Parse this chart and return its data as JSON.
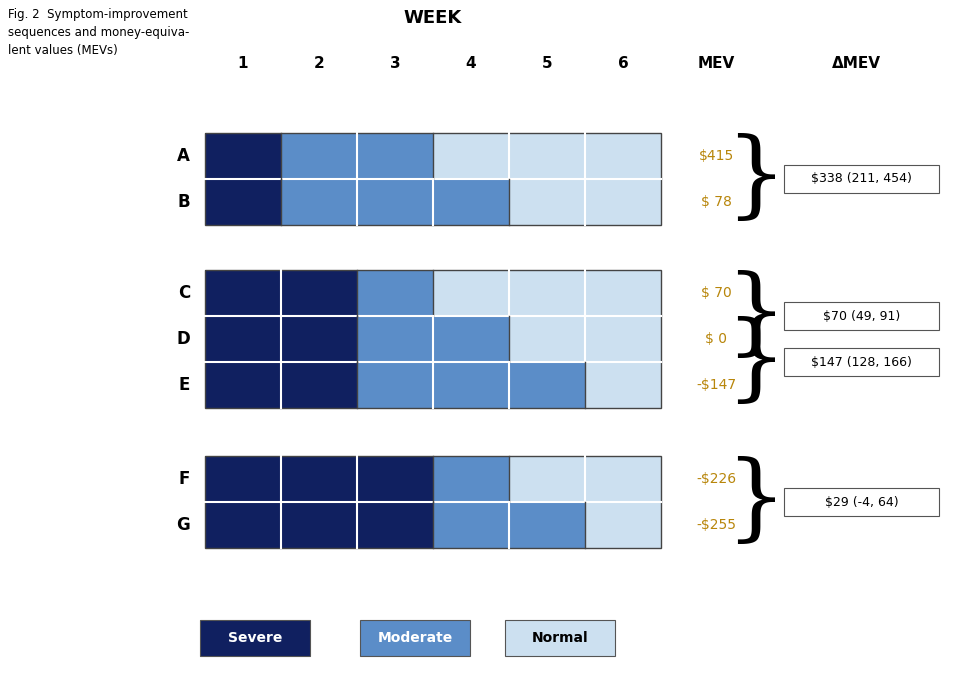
{
  "title": "WEEK",
  "fig_label": "Fig. 2  Symptom-improvement\nsequences and money-equiva-\nlent values (MEVs)",
  "week_labels": [
    "1",
    "2",
    "3",
    "4",
    "5",
    "6"
  ],
  "col_header_mev": "MEV",
  "col_header_dmev": "ΔMEV",
  "colors": {
    "severe": "#102060",
    "moderate": "#5b8dc8",
    "normal": "#cce0f0",
    "border_dark": "#444444",
    "border_light": "#888888"
  },
  "sequences": {
    "A": [
      "severe",
      "moderate",
      "moderate",
      "normal",
      "normal",
      "normal"
    ],
    "B": [
      "severe",
      "moderate",
      "moderate",
      "moderate",
      "normal",
      "normal"
    ],
    "C": [
      "severe",
      "severe",
      "moderate",
      "normal",
      "normal",
      "normal"
    ],
    "D": [
      "severe",
      "severe",
      "moderate",
      "moderate",
      "normal",
      "normal"
    ],
    "E": [
      "severe",
      "severe",
      "moderate",
      "moderate",
      "moderate",
      "normal"
    ],
    "F": [
      "severe",
      "severe",
      "severe",
      "moderate",
      "normal",
      "normal"
    ],
    "G": [
      "severe",
      "severe",
      "severe",
      "moderate",
      "moderate",
      "normal"
    ]
  },
  "mev_values": {
    "A": "$415",
    "B": "$ 78",
    "C": "$ 70",
    "D": "$ 0",
    "E": "-$147",
    "F": "-$226",
    "G": "-$255"
  },
  "mev_color": "#b8860b",
  "delta_boxes": [
    {
      "text": "$338 (211, 454)",
      "row1": "A",
      "row2": "B"
    },
    {
      "text": "$70 (49, 91)",
      "row1": "C",
      "row2": "D"
    },
    {
      "text": "$147 (128, 166)",
      "row1": "D",
      "row2": "E"
    },
    {
      "text": "$29 (-4, 64)",
      "row1": "F",
      "row2": "G"
    }
  ],
  "legend_items": [
    {
      "label": "Severe",
      "color": "#102060",
      "text_color": "#ffffff"
    },
    {
      "label": "Moderate",
      "color": "#5b8dc8",
      "text_color": "#ffffff"
    },
    {
      "label": "Normal",
      "color": "#cce0f0",
      "text_color": "#000000"
    }
  ],
  "row_groups": [
    [
      "A",
      "B"
    ],
    [
      "C",
      "D",
      "E"
    ],
    [
      "F",
      "G"
    ]
  ]
}
